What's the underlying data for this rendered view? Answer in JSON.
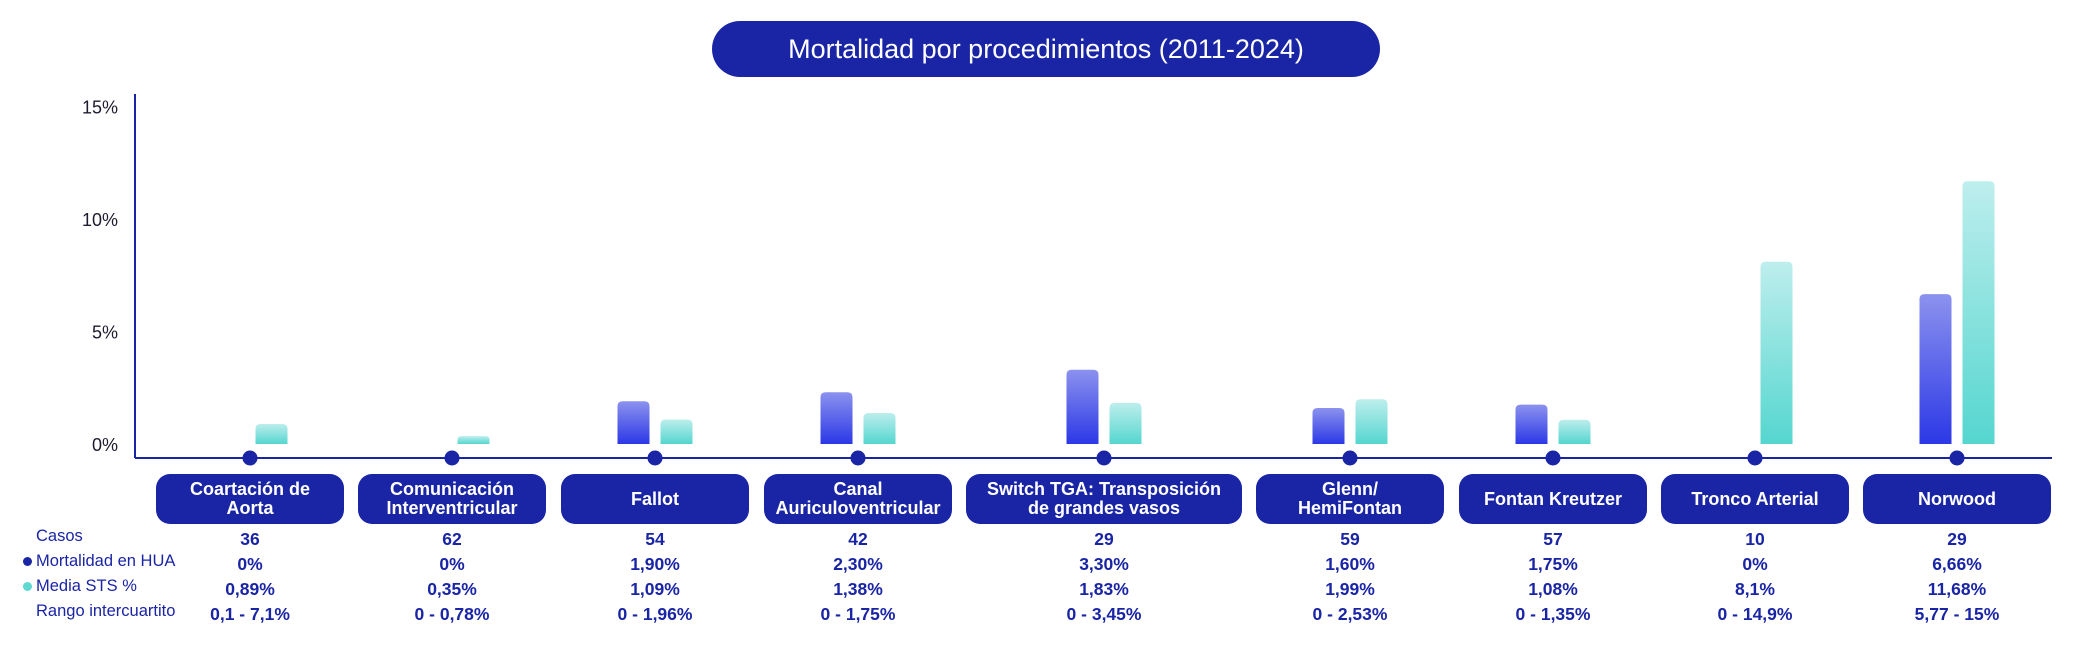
{
  "chart_data": {
    "type": "bar",
    "title": "Mortalidad por procedimientos (2011-2024)",
    "ylim": [
      0,
      15
    ],
    "yticks": [
      "15%",
      "10%",
      "5%",
      "0%"
    ],
    "ytick_values": [
      15,
      10,
      5,
      0
    ],
    "categories": [
      "Coartación de Aorta",
      "Comunicación Interventricular",
      "Fallot",
      "Canal Auriculoventricular",
      "Switch TGA: Transposición de grandes vasos",
      "Glenn/ HemiFontan",
      "Fontan Kreutzer",
      "Tronco Arterial",
      "Norwood"
    ],
    "series": [
      {
        "name": "Mortalidad en HUA",
        "color": "#3340e6",
        "values": [
          0,
          0,
          1.9,
          2.3,
          3.3,
          1.6,
          1.75,
          0,
          6.66
        ]
      },
      {
        "name": "Media STS %",
        "color": "#5fd8d2",
        "values": [
          0.89,
          0.35,
          1.09,
          1.38,
          1.83,
          1.99,
          1.08,
          8.1,
          11.68
        ]
      }
    ],
    "table": {
      "row_labels": [
        "Casos",
        "Mortalidad en HUA",
        "Media STS %",
        "Rango intercuartito"
      ],
      "casos": [
        "36",
        "62",
        "54",
        "42",
        "29",
        "59",
        "57",
        "10",
        "29"
      ],
      "mortalidad": [
        "0%",
        "0%",
        "1,90%",
        "2,30%",
        "3,30%",
        "1,60%",
        "1,75%",
        "0%",
        "6,66%"
      ],
      "media_sts": [
        "0,89%",
        "0,35%",
        "1,09%",
        "1,38%",
        "1,83%",
        "1,99%",
        "1,08%",
        "8,1%",
        "11,68%"
      ],
      "rango": [
        "0,1 - 7,1%",
        "0 - 0,78%",
        "0 - 1,96%",
        "0 - 1,75%",
        "0 - 3,45%",
        "0 - 2,53%",
        "0 - 1,35%",
        "0 - 14,9%",
        "5,77 - 15%"
      ]
    }
  },
  "category_lines": [
    [
      "Coartación de",
      "Aorta"
    ],
    [
      "Comunicación",
      "Interventricular"
    ],
    [
      "Fallot"
    ],
    [
      "Canal",
      "Auriculoventricular"
    ],
    [
      "Switch TGA: Transposición",
      "de grandes vasos"
    ],
    [
      "Glenn/",
      "HemiFontan"
    ],
    [
      "Fontan Kreutzer"
    ],
    [
      "Tronco Arterial"
    ],
    [
      "Norwood"
    ]
  ],
  "colors": {
    "navy": "#1a25a6",
    "blue": "#3340e6",
    "teal": "#5fd8d2"
  }
}
